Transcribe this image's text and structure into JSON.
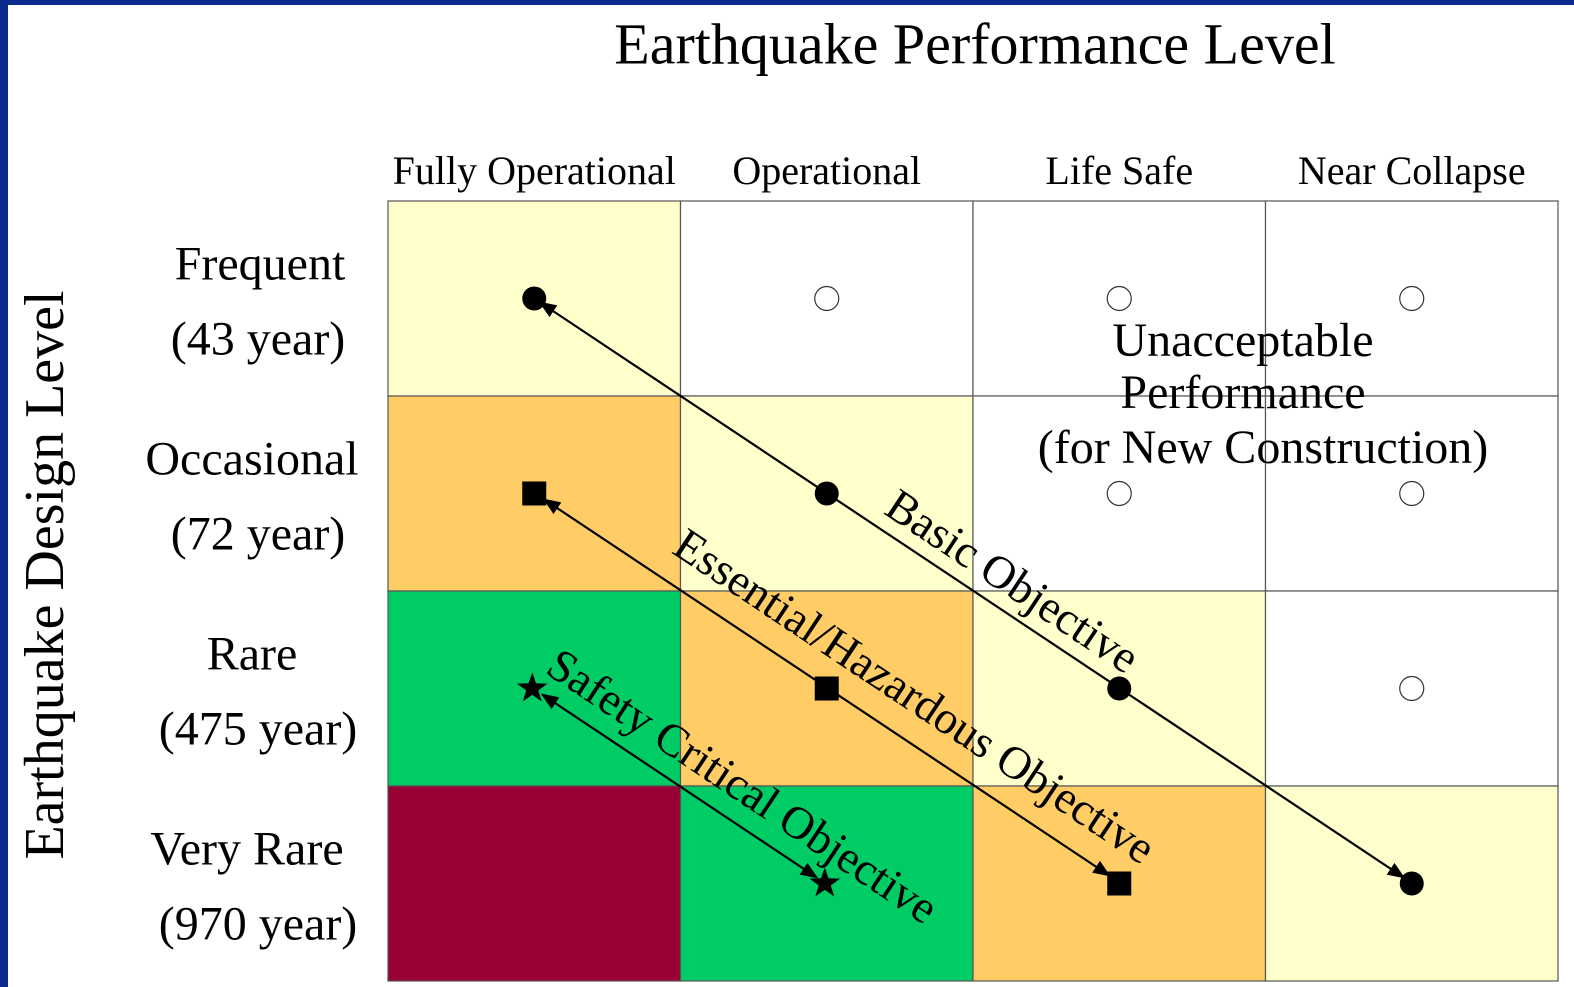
{
  "title": "Earthquake Performance Level",
  "y_axis_label": "Earthquake Design Level",
  "columns": [
    "Fully Operational",
    "Operational",
    "Life Safe",
    "Near Collapse"
  ],
  "rows": [
    {
      "label": "Frequent",
      "period": "(43 year)"
    },
    {
      "label": "Occasional",
      "period": "(72 year)"
    },
    {
      "label": "Rare",
      "period": "(475 year)"
    },
    {
      "label": "Very Rare",
      "period": "(970 year)"
    }
  ],
  "unacceptable": [
    "Unacceptable",
    "Performance",
    "(for New Construction)"
  ],
  "objectives": [
    "Basic Objective",
    "Essential/Hazardous Objective",
    "Safety Critical Objective"
  ]
}
